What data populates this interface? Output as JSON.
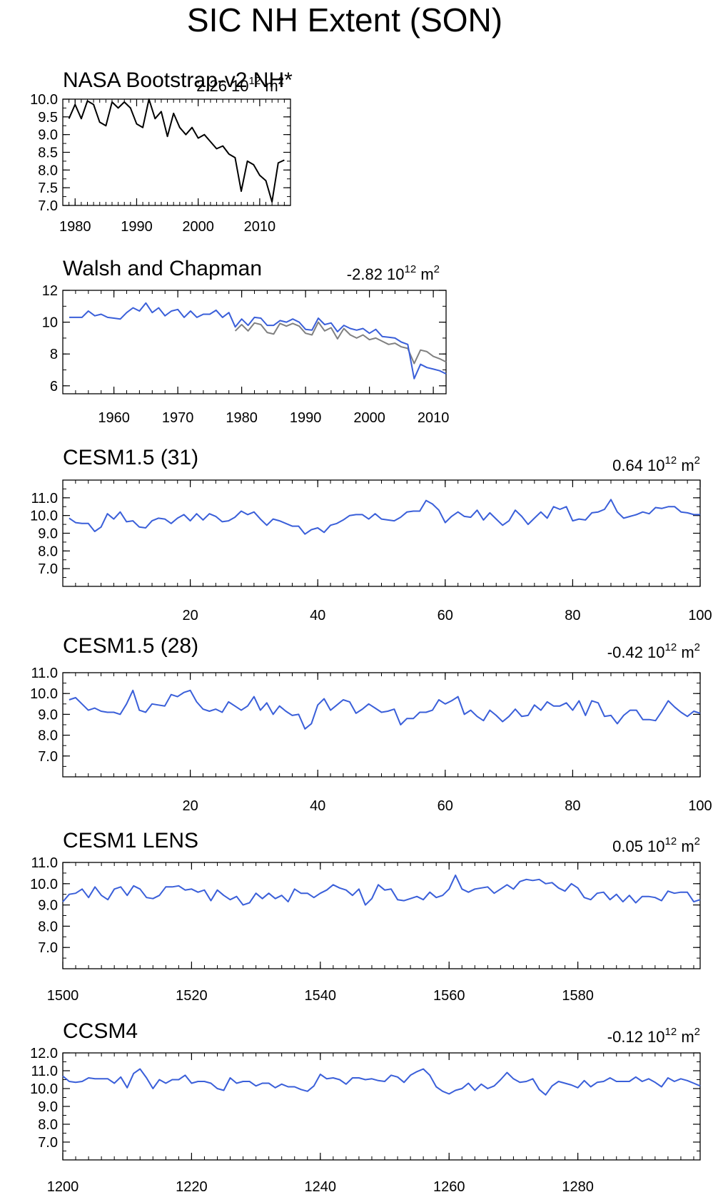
{
  "figure": {
    "title": "SIC NH Extent (SON)"
  },
  "chart_data": [
    {
      "type": "line",
      "title": "NASA Bootstrap-v2 NH*",
      "annotation": {
        "value": "2.26",
        "unit": "10",
        "exp": "12",
        "unit2": "m",
        "exp2": "2"
      },
      "xlim": [
        1978,
        2015
      ],
      "ylim": [
        7.0,
        10.0
      ],
      "xticks": [
        1980,
        1990,
        2000,
        2010
      ],
      "xtick_labels": [
        "1980",
        "1990",
        "2000",
        "2010"
      ],
      "yticks": [
        7.0,
        7.5,
        8.0,
        8.5,
        9.0,
        9.5,
        10.0
      ],
      "ytick_labels": [
        "7.0",
        "7.5",
        "8.0",
        "8.5",
        "9.0",
        "9.5",
        "10.0"
      ],
      "colors": [
        "#000000"
      ],
      "series": [
        {
          "x": [
            1979,
            1980,
            1981,
            1982,
            1983,
            1984,
            1985,
            1986,
            1987,
            1988,
            1989,
            1990,
            1991,
            1992,
            1993,
            1994,
            1995,
            1996,
            1997,
            1998,
            1999,
            2000,
            2001,
            2002,
            2003,
            2004,
            2005,
            2006,
            2007,
            2008,
            2009,
            2010,
            2011,
            2012,
            2013,
            2014
          ],
          "values": [
            9.45,
            9.85,
            9.45,
            9.95,
            9.85,
            9.35,
            9.25,
            9.92,
            9.75,
            9.92,
            9.75,
            9.3,
            9.2,
            10.0,
            9.45,
            9.65,
            8.95,
            9.6,
            9.2,
            9.0,
            9.2,
            8.9,
            9.0,
            8.8,
            8.6,
            8.68,
            8.45,
            8.35,
            7.4,
            8.25,
            8.15,
            7.85,
            7.7,
            7.1,
            8.2,
            8.28
          ]
        }
      ]
    },
    {
      "type": "line",
      "title": "Walsh and Chapman",
      "annotation": {
        "value": "-2.82",
        "unit": "10",
        "exp": "12",
        "unit2": "m",
        "exp2": "2"
      },
      "xlim": [
        1952,
        2012
      ],
      "ylim": [
        5.5,
        12.0
      ],
      "xticks": [
        1960,
        1970,
        1980,
        1990,
        2000,
        2010
      ],
      "xtick_labels": [
        "1960",
        "1970",
        "1980",
        "1990",
        "2000",
        "2010"
      ],
      "yticks": [
        6,
        8,
        10,
        12
      ],
      "ytick_labels": [
        "6",
        "8",
        "10",
        "12"
      ],
      "colors": [
        "#808080",
        "#3a5fd9"
      ],
      "series": [
        {
          "x": [
            1979,
            1980,
            1981,
            1982,
            1983,
            1984,
            1985,
            1986,
            1987,
            1988,
            1989,
            1990,
            1991,
            1992,
            1993,
            1994,
            1995,
            1996,
            1997,
            1998,
            1999,
            2000,
            2001,
            2002,
            2003,
            2004,
            2005,
            2006,
            2007,
            2008,
            2009,
            2010,
            2011,
            2012
          ],
          "values": [
            9.45,
            9.85,
            9.45,
            9.95,
            9.85,
            9.35,
            9.25,
            9.92,
            9.75,
            9.92,
            9.75,
            9.3,
            9.2,
            10.0,
            9.45,
            9.65,
            8.95,
            9.6,
            9.2,
            9.0,
            9.2,
            8.9,
            9.0,
            8.8,
            8.6,
            8.68,
            8.45,
            8.35,
            7.4,
            8.25,
            8.15,
            7.85,
            7.7,
            7.5
          ]
        },
        {
          "x": [
            1953,
            1954,
            1955,
            1956,
            1957,
            1958,
            1959,
            1960,
            1961,
            1962,
            1963,
            1964,
            1965,
            1966,
            1967,
            1968,
            1969,
            1970,
            1971,
            1972,
            1973,
            1974,
            1975,
            1976,
            1977,
            1978,
            1979,
            1980,
            1981,
            1982,
            1983,
            1984,
            1985,
            1986,
            1987,
            1988,
            1989,
            1990,
            1991,
            1992,
            1993,
            1994,
            1995,
            1996,
            1997,
            1998,
            1999,
            2000,
            2001,
            2002,
            2003,
            2004,
            2005,
            2006,
            2007,
            2008,
            2009,
            2010,
            2011,
            2012
          ],
          "values": [
            10.3,
            10.3,
            10.3,
            10.7,
            10.4,
            10.5,
            10.3,
            10.25,
            10.2,
            10.6,
            10.9,
            10.7,
            11.2,
            10.6,
            10.9,
            10.4,
            10.7,
            10.8,
            10.3,
            10.7,
            10.3,
            10.5,
            10.5,
            10.75,
            10.3,
            10.6,
            9.7,
            10.2,
            9.8,
            10.3,
            10.25,
            9.8,
            9.8,
            10.1,
            10.0,
            10.2,
            10.0,
            9.55,
            9.5,
            10.25,
            9.85,
            9.95,
            9.4,
            9.8,
            9.6,
            9.5,
            9.6,
            9.3,
            9.55,
            9.1,
            9.05,
            9.0,
            8.75,
            8.6,
            6.45,
            7.35,
            7.15,
            7.05,
            6.95,
            6.75
          ]
        }
      ]
    },
    {
      "type": "line",
      "title": "CESM1.5 (31)",
      "annotation": {
        "value": "0.64",
        "unit": "10",
        "exp": "12",
        "unit2": "m",
        "exp2": "2"
      },
      "xlim": [
        0,
        100
      ],
      "ylim": [
        6.0,
        12.0
      ],
      "xticks": [
        20,
        40,
        60,
        80,
        100
      ],
      "xtick_labels": [
        "20",
        "40",
        "60",
        "80",
        "100"
      ],
      "yticks": [
        7.0,
        8.0,
        9.0,
        10.0,
        11.0
      ],
      "ytick_labels": [
        "7.0",
        "8.0",
        "9.0",
        "10.0",
        "11.0"
      ],
      "colors": [
        "#3a5fd9"
      ],
      "series": [
        {
          "x_start": 1,
          "values": [
            9.85,
            9.6,
            9.55,
            9.55,
            9.1,
            9.35,
            10.1,
            9.8,
            10.2,
            9.65,
            9.7,
            9.35,
            9.3,
            9.7,
            9.85,
            9.8,
            9.55,
            9.85,
            10.05,
            9.7,
            10.1,
            9.75,
            10.1,
            9.95,
            9.65,
            9.7,
            9.9,
            10.25,
            10.05,
            10.2,
            9.8,
            9.45,
            9.8,
            9.7,
            9.55,
            9.4,
            9.4,
            8.95,
            9.2,
            9.3,
            9.05,
            9.45,
            9.55,
            9.75,
            10.0,
            10.05,
            10.05,
            9.8,
            10.1,
            9.8,
            9.75,
            9.7,
            9.9,
            10.2,
            10.25,
            10.25,
            10.85,
            10.65,
            10.3,
            9.6,
            9.95,
            10.2,
            9.95,
            9.9,
            10.3,
            9.75,
            10.15,
            9.8,
            9.45,
            9.7,
            10.3,
            9.95,
            9.5,
            9.85,
            10.2,
            9.85,
            10.5,
            10.35,
            10.5,
            9.7,
            9.8,
            9.75,
            10.15,
            10.2,
            10.35,
            10.9,
            10.2,
            9.85,
            9.95,
            10.05,
            10.2,
            10.1,
            10.45,
            10.4,
            10.5,
            10.5,
            10.2,
            10.15,
            10.05,
            10.05
          ]
        }
      ]
    },
    {
      "type": "line",
      "title": "CESM1.5 (28)",
      "annotation": {
        "value": "-0.42",
        "unit": "10",
        "exp": "12",
        "unit2": "m",
        "exp2": "2"
      },
      "xlim": [
        0,
        100
      ],
      "ylim": [
        6.0,
        11.0
      ],
      "xticks": [
        20,
        40,
        60,
        80,
        100
      ],
      "xtick_labels": [
        "20",
        "40",
        "60",
        "80",
        "100"
      ],
      "yticks": [
        7.0,
        8.0,
        9.0,
        10.0,
        11.0
      ],
      "ytick_labels": [
        "7.0",
        "8.0",
        "9.0",
        "10.0",
        "11.0"
      ],
      "colors": [
        "#3a5fd9"
      ],
      "series": [
        {
          "x_start": 1,
          "values": [
            9.7,
            9.8,
            9.5,
            9.2,
            9.3,
            9.15,
            9.1,
            9.1,
            9.0,
            9.5,
            10.15,
            9.2,
            9.1,
            9.5,
            9.45,
            9.4,
            9.95,
            9.85,
            10.05,
            10.15,
            9.6,
            9.25,
            9.15,
            9.25,
            9.1,
            9.6,
            9.4,
            9.2,
            9.4,
            9.85,
            9.2,
            9.55,
            9.0,
            9.4,
            9.15,
            8.95,
            9.0,
            8.3,
            8.55,
            9.45,
            9.75,
            9.2,
            9.45,
            9.7,
            9.6,
            9.05,
            9.25,
            9.5,
            9.3,
            9.1,
            9.15,
            9.25,
            8.5,
            8.8,
            8.8,
            9.1,
            9.1,
            9.2,
            9.7,
            9.5,
            9.65,
            9.85,
            9.0,
            9.2,
            8.9,
            8.7,
            9.2,
            8.95,
            8.65,
            8.9,
            9.25,
            8.9,
            8.95,
            9.45,
            9.2,
            9.6,
            9.4,
            9.4,
            9.55,
            9.2,
            9.65,
            8.95,
            9.65,
            9.55,
            8.9,
            8.95,
            8.55,
            8.95,
            9.2,
            9.2,
            8.75,
            8.75,
            8.7,
            9.15,
            9.65,
            9.35,
            9.1,
            8.9,
            9.15,
            9.05
          ]
        }
      ]
    },
    {
      "type": "line",
      "title": "CESM1 LENS",
      "annotation": {
        "value": "0.05",
        "unit": "10",
        "exp": "12",
        "unit2": "m",
        "exp2": "2"
      },
      "xlim": [
        1500,
        1599
      ],
      "ylim": [
        6.0,
        11.0
      ],
      "xticks": [
        1500,
        1520,
        1540,
        1560,
        1580
      ],
      "xtick_labels": [
        "1500",
        "1520",
        "1540",
        "1560",
        "1580"
      ],
      "yticks": [
        7.0,
        8.0,
        9.0,
        10.0,
        11.0
      ],
      "ytick_labels": [
        "7.0",
        "8.0",
        "9.0",
        "10.0",
        "11.0"
      ],
      "colors": [
        "#3a5fd9"
      ],
      "series": [
        {
          "x_start": 1500,
          "values": [
            9.15,
            9.5,
            9.55,
            9.75,
            9.35,
            9.85,
            9.45,
            9.25,
            9.75,
            9.85,
            9.45,
            9.9,
            9.75,
            9.35,
            9.3,
            9.45,
            9.85,
            9.85,
            9.9,
            9.7,
            9.75,
            9.6,
            9.7,
            9.2,
            9.7,
            9.45,
            9.25,
            9.4,
            9.0,
            9.1,
            9.55,
            9.3,
            9.55,
            9.3,
            9.45,
            9.15,
            9.75,
            9.55,
            9.55,
            9.35,
            9.55,
            9.7,
            9.95,
            9.8,
            9.7,
            9.45,
            9.75,
            9.0,
            9.3,
            9.95,
            9.7,
            9.75,
            9.25,
            9.2,
            9.3,
            9.4,
            9.25,
            9.6,
            9.35,
            9.45,
            9.75,
            10.4,
            9.75,
            9.6,
            9.75,
            9.8,
            9.85,
            9.55,
            9.75,
            9.95,
            9.75,
            10.1,
            10.2,
            10.15,
            10.2,
            10.0,
            10.05,
            9.8,
            9.65,
            10.0,
            9.8,
            9.35,
            9.25,
            9.55,
            9.6,
            9.25,
            9.5,
            9.15,
            9.45,
            9.1,
            9.4,
            9.4,
            9.35,
            9.2,
            9.65,
            9.55,
            9.6,
            9.6,
            9.15,
            9.25
          ]
        }
      ]
    },
    {
      "type": "line",
      "title": "CCSM4",
      "annotation": {
        "value": "-0.12",
        "unit": "10",
        "exp": "12",
        "unit2": "m",
        "exp2": "2"
      },
      "xlim": [
        1200,
        1299
      ],
      "ylim": [
        6.0,
        12.0
      ],
      "xticks": [
        1200,
        1220,
        1240,
        1260,
        1280
      ],
      "xtick_labels": [
        "1200",
        "1220",
        "1240",
        "1260",
        "1280"
      ],
      "yticks": [
        7.0,
        8.0,
        9.0,
        10.0,
        11.0,
        12.0
      ],
      "ytick_labels": [
        "7.0",
        "8.0",
        "9.0",
        "10.0",
        "11.0",
        "12.0"
      ],
      "colors": [
        "#3a5fd9"
      ],
      "series": [
        {
          "x_start": 1200,
          "values": [
            10.7,
            10.4,
            10.35,
            10.4,
            10.6,
            10.55,
            10.55,
            10.55,
            10.3,
            10.65,
            10.05,
            10.85,
            11.1,
            10.6,
            10.0,
            10.5,
            10.3,
            10.5,
            10.5,
            10.75,
            10.3,
            10.4,
            10.4,
            10.3,
            10.0,
            9.9,
            10.6,
            10.3,
            10.4,
            10.4,
            10.15,
            10.3,
            10.3,
            10.05,
            10.25,
            10.1,
            10.1,
            9.95,
            9.85,
            10.15,
            10.8,
            10.55,
            10.6,
            10.5,
            10.25,
            10.6,
            10.6,
            10.5,
            10.55,
            10.45,
            10.4,
            10.75,
            10.65,
            10.35,
            10.75,
            10.95,
            11.1,
            10.75,
            10.1,
            9.85,
            9.7,
            9.9,
            10.0,
            10.3,
            9.9,
            10.25,
            10.0,
            10.15,
            10.5,
            10.9,
            10.55,
            10.35,
            10.4,
            10.55,
            9.95,
            9.65,
            10.15,
            10.4,
            10.3,
            10.2,
            10.05,
            10.45,
            10.1,
            10.35,
            10.4,
            10.6,
            10.4,
            10.4,
            10.4,
            10.65,
            10.4,
            10.55,
            10.35,
            10.1,
            10.6,
            10.4,
            10.55,
            10.45,
            10.3,
            10.15
          ]
        }
      ]
    }
  ]
}
